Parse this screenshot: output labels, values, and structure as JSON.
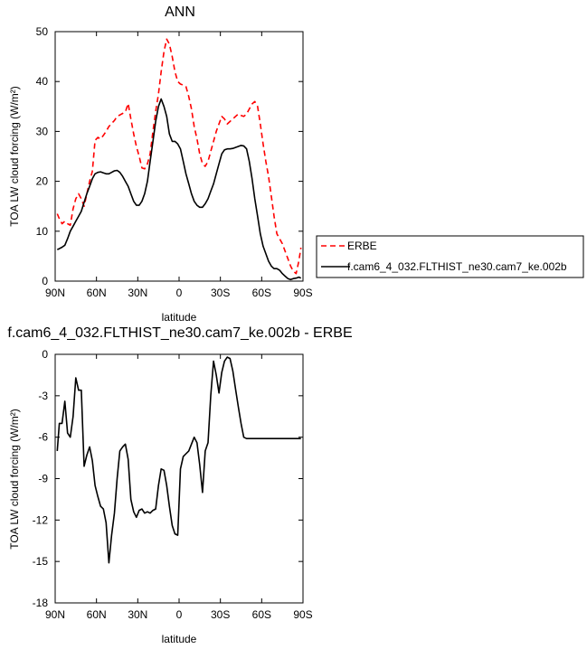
{
  "chart_data": [
    {
      "type": "line",
      "title": "ANN",
      "xlabel": "latitude",
      "ylabel": "TOA LW cloud forcing (W/m²)",
      "xlim": [
        90,
        -90
      ],
      "ylim": [
        0,
        50
      ],
      "xticks": [
        90,
        60,
        30,
        0,
        -30,
        -60,
        -90
      ],
      "xticklabels": [
        "90N",
        "60N",
        "30N",
        "0",
        "30S",
        "60S",
        "90S"
      ],
      "yticks": [
        0,
        10,
        20,
        30,
        40,
        50
      ],
      "yticklabels": [
        "0",
        "10",
        "20",
        "30",
        "40",
        "50"
      ],
      "legend": "right",
      "series": [
        {
          "name": "ERBE",
          "color": "#ff0000",
          "style": "dashed",
          "x": [
            88.5,
            87,
            85,
            83,
            81,
            79,
            77,
            75,
            73,
            71,
            69,
            67,
            65,
            63,
            61,
            59,
            57,
            55,
            53,
            51,
            49,
            47,
            45,
            43,
            41,
            39,
            37,
            35,
            33,
            31,
            29,
            27,
            25,
            23,
            21,
            19,
            17,
            15,
            13,
            11,
            9,
            7,
            5,
            3,
            1,
            -1,
            -3,
            -5,
            -7,
            -9,
            -11,
            -13,
            -15,
            -17,
            -19,
            -21,
            -23,
            -25,
            -27,
            -29,
            -31,
            -33,
            -35,
            -37,
            -39,
            -41,
            -43,
            -45,
            -47,
            -49,
            -51,
            -53,
            -55,
            -57,
            -59,
            -61,
            -63,
            -65,
            -67,
            -69,
            -71,
            -73,
            -75,
            -77,
            -79,
            -81,
            -83,
            -85,
            -87,
            -88.5
          ],
          "y": [
            13.5,
            12.5,
            11.5,
            12,
            11.5,
            11.2,
            14.5,
            16.5,
            17.5,
            16.5,
            15,
            17.5,
            20,
            22,
            28.2,
            28.8,
            28.5,
            29.2,
            30,
            31,
            31.6,
            32.2,
            33,
            33.3,
            33.6,
            33.9,
            35.6,
            32.5,
            29.5,
            27,
            25,
            22.7,
            22.5,
            23.5,
            25.5,
            30,
            34,
            37.5,
            42,
            46,
            48.5,
            47.5,
            45,
            42,
            40,
            39.5,
            39.3,
            39,
            37,
            34.5,
            31,
            28.5,
            25.5,
            23.5,
            23,
            24,
            26,
            28,
            30,
            31.5,
            33,
            32.5,
            31.5,
            32,
            32.5,
            33,
            33.5,
            33.2,
            33,
            33.5,
            34.5,
            35.5,
            36,
            35,
            31.5,
            27.5,
            24,
            21,
            17,
            13,
            9.5,
            8.5,
            7.5,
            6,
            4.5,
            3,
            2,
            1.5,
            4,
            6.7
          ]
        },
        {
          "name": "f.cam6_4_032.FLTHIST_ne30.cam7_ke.002b",
          "color": "#000000",
          "style": "solid",
          "x": [
            88.5,
            87,
            85,
            83,
            81,
            79,
            77,
            75,
            73,
            71,
            69,
            67,
            65,
            63,
            61,
            59,
            57,
            55,
            53,
            51,
            49,
            47,
            45,
            43,
            41,
            39,
            37,
            35,
            33,
            31,
            29,
            27,
            25,
            23,
            21,
            19,
            17,
            15,
            13,
            11,
            9,
            7,
            5,
            3,
            1,
            -1,
            -3,
            -5,
            -7,
            -9,
            -11,
            -13,
            -15,
            -17,
            -19,
            -21,
            -23,
            -25,
            -27,
            -29,
            -31,
            -33,
            -35,
            -37,
            -39,
            -41,
            -43,
            -45,
            -47,
            -49,
            -51,
            -53,
            -55,
            -57,
            -59,
            -61,
            -63,
            -65,
            -67,
            -69,
            -71,
            -73,
            -75,
            -77,
            -79,
            -81,
            -83,
            -85,
            -87,
            -88.5
          ],
          "y": [
            6.3,
            6.5,
            6.8,
            7.2,
            8.5,
            10,
            11,
            12,
            13,
            14,
            15.8,
            17.5,
            19,
            20.5,
            21.5,
            21.8,
            21.9,
            21.7,
            21.5,
            21.5,
            21.8,
            22.1,
            22.2,
            21.8,
            21,
            20,
            19,
            17.5,
            16,
            15.2,
            15.2,
            16,
            17.5,
            20,
            24,
            28,
            32,
            35,
            36.5,
            35,
            33,
            29.5,
            28,
            28,
            27.5,
            26.5,
            24,
            21.5,
            19.5,
            17.5,
            16,
            15.2,
            14.8,
            14.8,
            15.5,
            16.5,
            18,
            19.5,
            21.5,
            23.5,
            25.5,
            26.3,
            26.5,
            26.5,
            26.6,
            26.8,
            27,
            27.2,
            27.1,
            26.5,
            24,
            20.5,
            16.5,
            13,
            9.5,
            7,
            5.5,
            4,
            3,
            2.5,
            2.5,
            2.2,
            1.5,
            1,
            0.5,
            0.3,
            0.5,
            0.6,
            0.8,
            0.6
          ]
        }
      ]
    },
    {
      "type": "line",
      "title": "f.cam6_4_032.FLTHIST_ne30.cam7_ke.002b - ERBE",
      "xlabel": "latitude",
      "ylabel": "TOA LW cloud forcing (W/m²)",
      "xlim": [
        90,
        -90
      ],
      "ylim": [
        -18,
        0
      ],
      "xticks": [
        90,
        60,
        30,
        0,
        -30,
        -60,
        -90
      ],
      "xticklabels": [
        "90N",
        "60N",
        "30N",
        "0",
        "30S",
        "60S",
        "90S"
      ],
      "yticks": [
        0,
        -3,
        -6,
        -9,
        -12,
        -15,
        -18
      ],
      "yticklabels": [
        "0",
        "-3",
        "-6",
        "-9",
        "-12",
        "-15",
        "-18"
      ],
      "series": [
        {
          "color": "#000000",
          "style": "solid",
          "x": [
            88.5,
            87,
            85,
            83,
            81,
            79,
            77,
            75,
            73,
            71,
            69,
            67,
            65,
            63,
            61,
            59,
            57,
            55,
            53,
            51,
            49,
            47,
            45,
            43,
            41,
            39,
            37,
            35,
            33,
            31,
            29,
            27,
            25,
            23,
            21,
            19,
            17,
            15,
            13,
            11,
            9,
            7,
            5,
            3,
            1,
            -1,
            -3,
            -5,
            -7,
            -9,
            -11,
            -13,
            -15,
            -17,
            -19,
            -21,
            -23,
            -25,
            -27,
            -29,
            -31,
            -33,
            -35,
            -37,
            -39,
            -41,
            -43,
            -45,
            -47,
            -49,
            -51,
            -53,
            -55,
            -57,
            -59,
            -61,
            -63,
            -65,
            -67,
            -69,
            -71,
            -73,
            -75,
            -77,
            -79,
            -81,
            -83,
            -85,
            -87,
            -88.5
          ],
          "y": [
            -7,
            -5,
            -5,
            -3.4,
            -5.7,
            -6,
            -4.5,
            -1.7,
            -2.6,
            -2.6,
            -8.1,
            -7.3,
            -6.7,
            -7.7,
            -9.5,
            -10.3,
            -11,
            -11.2,
            -12.2,
            -15.1,
            -13.1,
            -11.5,
            -9,
            -7,
            -6.7,
            -6.5,
            -7.6,
            -10.5,
            -11.4,
            -11.8,
            -11.3,
            -11.2,
            -11.5,
            -11.4,
            -11.5,
            -11.3,
            -11.2,
            -9.5,
            -8.3,
            -8.4,
            -9.5,
            -11,
            -12.4,
            -13,
            -13.1,
            -8.3,
            -7.4,
            -7.2,
            -7,
            -6.5,
            -6,
            -6.4,
            -8,
            -10,
            -7,
            -6.4,
            -3,
            -0.5,
            -1.5,
            -2.8,
            -1.3,
            -0.5,
            -0.2,
            -0.3,
            -1.2,
            -2.5,
            -3.8,
            -5,
            -6,
            -6.1,
            -6.1,
            -6.1,
            -6.1,
            -6.1,
            -6.1,
            -6.1,
            -6.1,
            -6.1,
            -6.1,
            -6.1,
            -6.1,
            -6.1,
            -6.1,
            -6.1,
            -6.1,
            -6.1,
            -6.1,
            -6.1,
            -6.1,
            -6.1
          ]
        }
      ]
    }
  ]
}
